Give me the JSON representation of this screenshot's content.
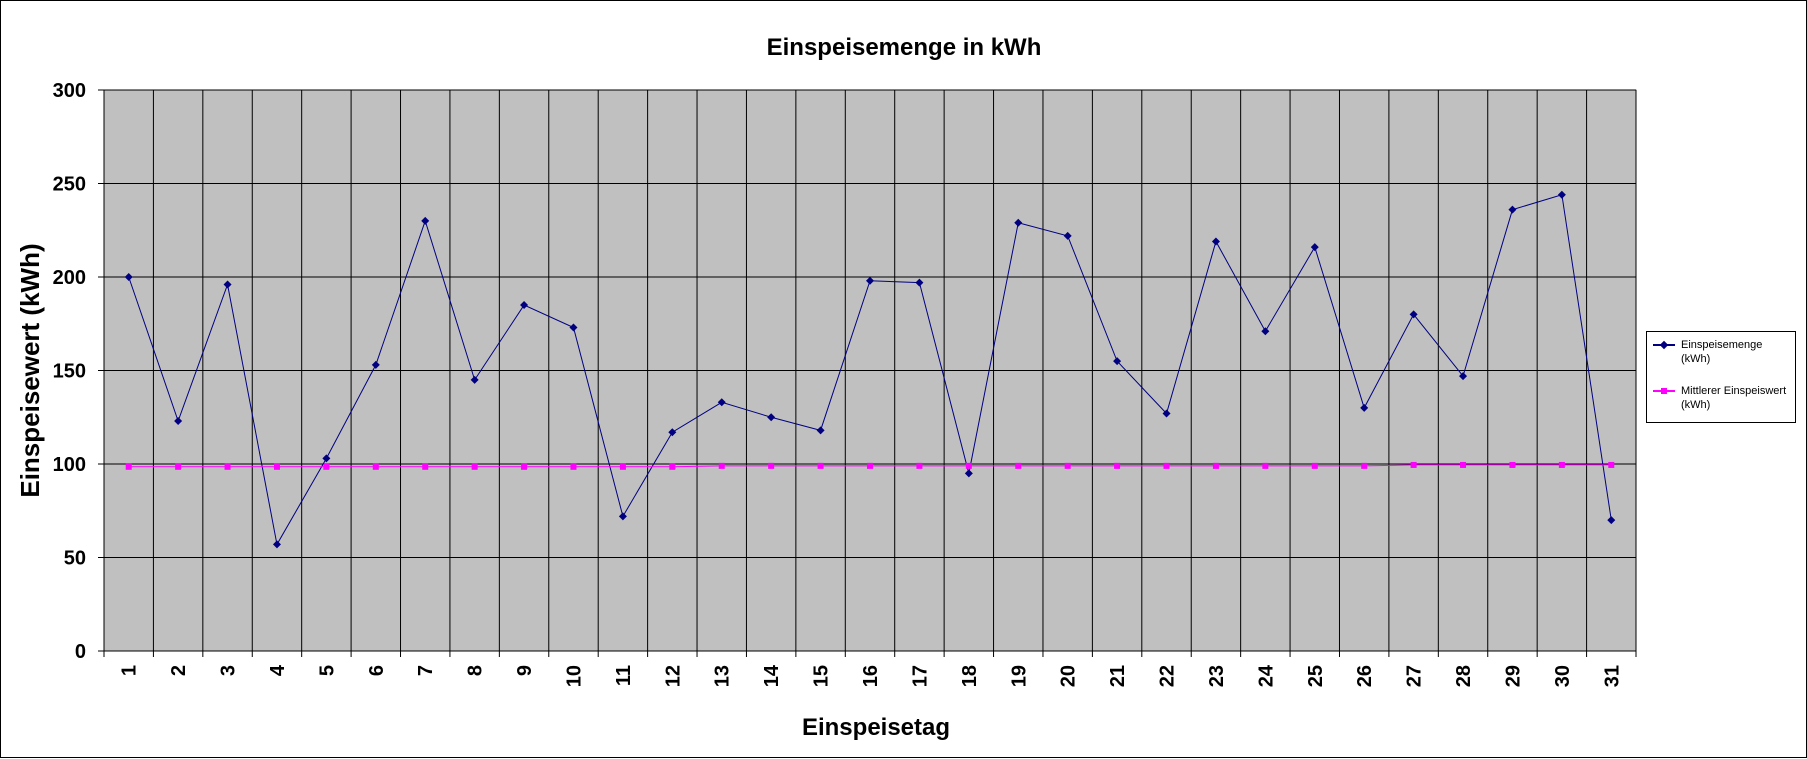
{
  "chart_data": {
    "type": "line",
    "title": "Einspeisemenge in kWh",
    "xlabel": "Einspeisetag",
    "ylabel": "Einspeisewert  (kWh)",
    "ylim": [
      0,
      300
    ],
    "yticks": [
      0,
      50,
      100,
      150,
      200,
      250,
      300
    ],
    "categories": [
      "1",
      "2",
      "3",
      "4",
      "5",
      "6",
      "7",
      "8",
      "9",
      "10",
      "11",
      "12",
      "13",
      "14",
      "15",
      "16",
      "17",
      "18",
      "19",
      "20",
      "21",
      "22",
      "23",
      "24",
      "25",
      "26",
      "27",
      "28",
      "29",
      "30",
      "31"
    ],
    "grid": true,
    "legend_position": "right",
    "plot_background": "#c0c0c0",
    "series": [
      {
        "name": "Einspeisemenge (kWh)",
        "color": "#000080",
        "marker": "diamond",
        "values": [
          200,
          123,
          196,
          57,
          103,
          153,
          230,
          145,
          185,
          173,
          72,
          117,
          133,
          125,
          118,
          198,
          197,
          95,
          229,
          222,
          155,
          127,
          219,
          171,
          216,
          130,
          180,
          147,
          236,
          244,
          70
        ]
      },
      {
        "name": "Mittlerer Einspeiswert (kWh)",
        "color": "#ff00ff",
        "marker": "square",
        "values": [
          98.5,
          98.5,
          98.5,
          98.5,
          98.5,
          98.5,
          98.5,
          98.5,
          98.5,
          98.5,
          98.5,
          98.5,
          99,
          99,
          99,
          99,
          99,
          99,
          99,
          99,
          99,
          99,
          99,
          99,
          99,
          99,
          99.5,
          99.5,
          99.5,
          99.5,
          99.5
        ]
      }
    ]
  },
  "legend": {
    "entry1": "Einspeisemenge (kWh)",
    "entry2": "Mittlerer Einspeiswert (kWh)"
  }
}
